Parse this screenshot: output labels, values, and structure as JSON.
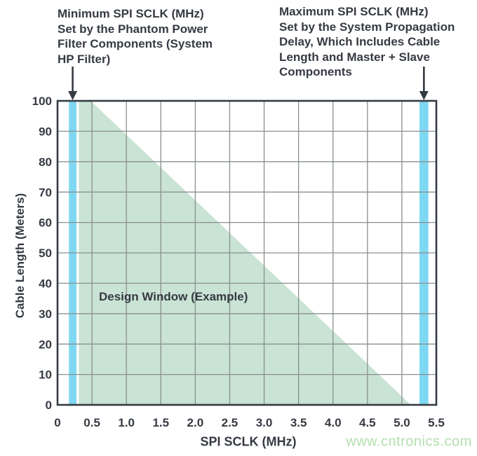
{
  "figure": {
    "watermark": "www.cntronics.com"
  },
  "annotations": {
    "min_sclk": {
      "text": "Minimum SPI SCLK (MHz)\nSet by the Phantom Power\nFilter Components (System\nHP Filter)",
      "arrow_x_mhz": 0.22
    },
    "max_sclk": {
      "text": "Maximum SPI SCLK (MHz)\nSet by the System Propagation\nDelay, Which Includes Cable\nLength and Master + Slave\nComponents",
      "arrow_x_mhz": 5.32
    }
  },
  "colors": {
    "ink": "#363a42",
    "grid": "#8a9090",
    "window_fill": "#c9e3d4",
    "sclk_bar": "#7fd8f2",
    "watermark": "#b3dfae",
    "background": "#ffffff"
  },
  "chart_data": {
    "type": "area",
    "title": "",
    "xlabel": "SPI SCLK (MHz)",
    "ylabel": "Cable Length (Meters)",
    "xlim": [
      0,
      5.5
    ],
    "ylim": [
      0,
      100
    ],
    "grid": true,
    "legend": "none",
    "x_ticks": [
      {
        "value": 0,
        "label": "0"
      },
      {
        "value": 0.5,
        "label": "0.5"
      },
      {
        "value": 1.0,
        "label": "1.0"
      },
      {
        "value": 1.5,
        "label": "1.5"
      },
      {
        "value": 2.0,
        "label": "2.0"
      },
      {
        "value": 2.5,
        "label": "2.5"
      },
      {
        "value": 3.0,
        "label": "3.0"
      },
      {
        "value": 3.5,
        "label": "3.5"
      },
      {
        "value": 4.0,
        "label": "4.0"
      },
      {
        "value": 4.5,
        "label": "4.5"
      },
      {
        "value": 5.0,
        "label": "5.0"
      },
      {
        "value": 5.5,
        "label": "5.5"
      }
    ],
    "y_ticks": [
      {
        "value": 0,
        "label": "0"
      },
      {
        "value": 10,
        "label": "10"
      },
      {
        "value": 20,
        "label": "20"
      },
      {
        "value": 30,
        "label": "30"
      },
      {
        "value": 40,
        "label": "40"
      },
      {
        "value": 50,
        "label": "50"
      },
      {
        "value": 60,
        "label": "60"
      },
      {
        "value": 70,
        "label": "70"
      },
      {
        "value": 80,
        "label": "80"
      },
      {
        "value": 90,
        "label": "90"
      },
      {
        "value": 100,
        "label": "100"
      }
    ],
    "design_window": {
      "label": "Design Window (Example)",
      "polygon_x_mhz_y_m": [
        [
          0.31,
          100
        ],
        [
          0.48,
          100
        ],
        [
          5.13,
          0
        ],
        [
          0.31,
          0
        ]
      ]
    },
    "sclk_limit_bars": [
      {
        "name": "min-sclk-bar",
        "x_mhz": 0.22,
        "width_mhz": 0.11
      },
      {
        "name": "max-sclk-bar",
        "x_mhz": 5.32,
        "width_mhz": 0.13
      }
    ]
  }
}
